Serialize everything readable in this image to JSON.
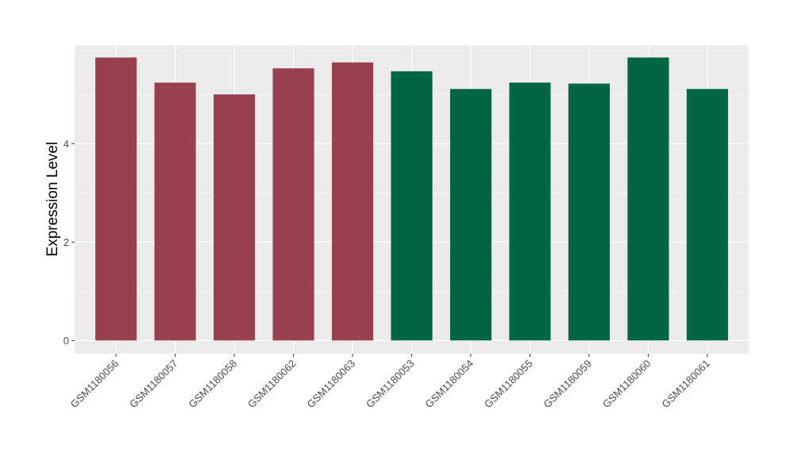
{
  "chart_data": {
    "type": "bar",
    "ylabel": "Expression Level",
    "xlabel": "",
    "title": "",
    "ylim": [
      -0.27,
      6.0
    ],
    "yticks": [
      0,
      2,
      4
    ],
    "grid": true,
    "legend": "none",
    "categories": [
      "GSM1180056",
      "GSM1180057",
      "GSM1180058",
      "GSM1180062",
      "GSM1180063",
      "GSM1180053",
      "GSM1180054",
      "GSM1180055",
      "GSM1180059",
      "GSM1180060",
      "GSM1180061"
    ],
    "values": [
      5.75,
      5.24,
      5.0,
      5.53,
      5.65,
      5.47,
      5.11,
      5.24,
      5.22,
      5.75,
      5.11
    ],
    "bar_colors": [
      "#99404F",
      "#99404F",
      "#99404F",
      "#99404F",
      "#99404F",
      "#006644",
      "#006644",
      "#006644",
      "#006644",
      "#006644",
      "#006644"
    ],
    "panel_background": "#EBEBEB",
    "gridline_color": "#FFFFFF"
  }
}
